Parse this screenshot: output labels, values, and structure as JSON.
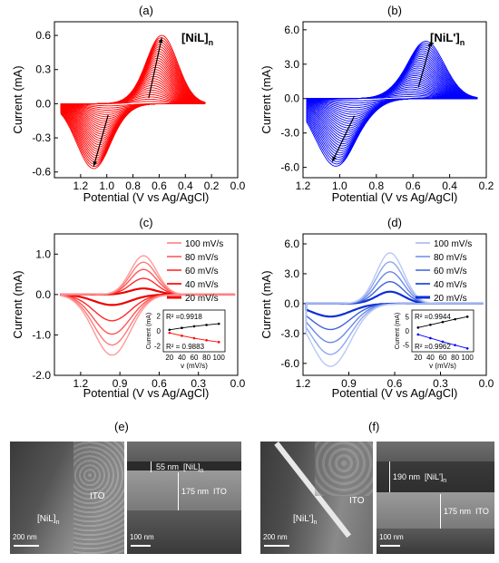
{
  "chart_data": [
    {
      "panel": "(a)",
      "type": "line",
      "title": "",
      "annotation": "[NiL]n",
      "xlabel": "Potential (V vs Ag/AgCl)",
      "ylabel": "Current (mA)",
      "xlim": [
        1.4,
        0.0
      ],
      "ylim": [
        -0.65,
        0.72
      ],
      "x_ticks": [
        "1.2",
        "1.0",
        "0.8",
        "0.6",
        "0.4",
        "0.2",
        "0.0"
      ],
      "y_ticks": [
        "-0.6",
        "-0.3",
        "0.0",
        "0.3",
        "0.6"
      ],
      "series_color": "#ff0000",
      "cycles": 30,
      "peaks": {
        "anodic": {
          "x": 0.58,
          "y": 0.6
        },
        "cathodic": {
          "x": 1.1,
          "y": -0.57
        }
      },
      "arrows": [
        {
          "from": [
            0.68,
            0.05
          ],
          "to": [
            0.58,
            0.58
          ]
        },
        {
          "from": [
            0.99,
            -0.1
          ],
          "to": [
            1.1,
            -0.55
          ]
        }
      ]
    },
    {
      "panel": "(b)",
      "type": "line",
      "title": "",
      "annotation": "[NiL']n",
      "xlabel": "Potential (V vs Ag/AgCl)",
      "ylabel": "Current (mA)",
      "xlim": [
        1.2,
        0.2
      ],
      "ylim": [
        -6.9,
        6.7
      ],
      "x_ticks": [
        "1.2",
        "1.0",
        "0.8",
        "0.6",
        "0.4",
        "0.2"
      ],
      "y_ticks": [
        "-6.0",
        "-3.0",
        "0.0",
        "3.0",
        "6.0"
      ],
      "series_color": "#0000ff",
      "cycles": 30,
      "peaks": {
        "anodic": {
          "x": 0.53,
          "y": 5.0
        },
        "cathodic": {
          "x": 1.02,
          "y": -5.9
        }
      },
      "arrows": [
        {
          "from": [
            0.57,
            1.0
          ],
          "to": [
            0.5,
            5.0
          ]
        },
        {
          "from": [
            0.92,
            -1.5
          ],
          "to": [
            1.04,
            -5.5
          ]
        }
      ]
    },
    {
      "panel": "(c)",
      "type": "line",
      "title": "",
      "xlabel": "Potential (V vs Ag/AgCl)",
      "ylabel": "Current (mA)",
      "xlim": [
        1.4,
        0.0
      ],
      "ylim": [
        -2.0,
        1.5
      ],
      "x_ticks": [
        "1.2",
        "0.9",
        "0.6",
        "0.3",
        "0.0"
      ],
      "y_ticks": [
        "-2.0",
        "-1.0",
        "0.0",
        "1.0"
      ],
      "series": [
        {
          "name": "100 mV/s",
          "anodic_peak": 0.96,
          "cathodic_peak": -1.5,
          "color": "#ff9a9a"
        },
        {
          "name": "80 mV/s",
          "anodic_peak": 0.8,
          "cathodic_peak": -1.25,
          "color": "#ff7a7a"
        },
        {
          "name": "60 mV/s",
          "anodic_peak": 0.62,
          "cathodic_peak": -0.98,
          "color": "#ff5555"
        },
        {
          "name": "40 mV/s",
          "anodic_peak": 0.4,
          "cathodic_peak": -0.65,
          "color": "#ff2a2a"
        },
        {
          "name": "20 mV/s",
          "anodic_peak": 0.15,
          "cathodic_peak": -0.26,
          "color": "#ee0000"
        }
      ],
      "inset": {
        "xlabel": "v (mV/s)",
        "ylabel": "Current (mA)",
        "x_ticks": [
          "20",
          "40",
          "60",
          "80",
          "100"
        ],
        "y_ticks": [
          "-2",
          "0",
          "2"
        ],
        "r2_top": "R² =0.9918",
        "r2_bottom": "R² = 0.9883",
        "x": [
          20,
          40,
          60,
          80,
          100
        ],
        "upper": [
          0.15,
          0.4,
          0.62,
          0.8,
          0.96
        ],
        "lower": [
          -0.26,
          -0.65,
          -0.98,
          -1.25,
          -1.5
        ]
      }
    },
    {
      "panel": "(d)",
      "type": "line",
      "title": "",
      "xlabel": "Potential (V vs Ag/AgCl)",
      "ylabel": "Current (mA)",
      "xlim": [
        1.2,
        0.0
      ],
      "ylim": [
        -7.2,
        7.0
      ],
      "x_ticks": [
        "1.2",
        "0.9",
        "0.6",
        "0.3",
        "0.0"
      ],
      "y_ticks": [
        "-6.0",
        "-3.0",
        "0.0",
        "3.0",
        "6.0"
      ],
      "series": [
        {
          "name": "100 mV/s",
          "anodic_peak": 5.1,
          "cathodic_peak": -6.3,
          "color": "#b8c8f5"
        },
        {
          "name": "80 mV/s",
          "anodic_peak": 4.2,
          "cathodic_peak": -5.1,
          "color": "#8fa8f0"
        },
        {
          "name": "60 mV/s",
          "anodic_peak": 3.2,
          "cathodic_peak": -3.9,
          "color": "#6a88e8"
        },
        {
          "name": "40 mV/s",
          "anodic_peak": 2.2,
          "cathodic_peak": -2.6,
          "color": "#3f62dd"
        },
        {
          "name": "20 mV/s",
          "anodic_peak": 1.2,
          "cathodic_peak": -1.3,
          "color": "#0a2ed6"
        }
      ],
      "inset": {
        "xlabel": "v (mV/s)",
        "ylabel": "Current (mA)",
        "x_ticks": [
          "20",
          "40",
          "60",
          "80",
          "100"
        ],
        "y_ticks": [
          "-5",
          "0",
          "5"
        ],
        "r2_top": "R² =0.9944",
        "r2_bottom": "R² =0.9962",
        "x": [
          20,
          40,
          60,
          80,
          100
        ],
        "upper": [
          1.2,
          2.2,
          3.2,
          4.2,
          5.1
        ],
        "lower": [
          -1.3,
          -2.6,
          -3.9,
          -5.1,
          -6.3
        ]
      }
    }
  ],
  "sem": {
    "e": {
      "letter": "(e)",
      "left": {
        "film_label": "[NiL]",
        "film_sub": "n",
        "ito_label": "ITO",
        "scale": "200 nm"
      },
      "right": {
        "top_thickness": "55 nm",
        "top_label": "[NiL]",
        "top_sub": "n",
        "bottom_thickness": "175 nm",
        "bottom_label": "ITO",
        "scale": "100 nm"
      }
    },
    "f": {
      "letter": "(f)",
      "left": {
        "film_label": "[NiL']",
        "film_sub": "n",
        "ito_label": "ITO",
        "scale": "200 nm"
      },
      "right": {
        "top_thickness": "190 nm",
        "top_label": "[NiL']",
        "top_sub": "n",
        "bottom_thickness": "175 nm",
        "bottom_label": "ITO",
        "scale": "100 nm"
      }
    }
  }
}
